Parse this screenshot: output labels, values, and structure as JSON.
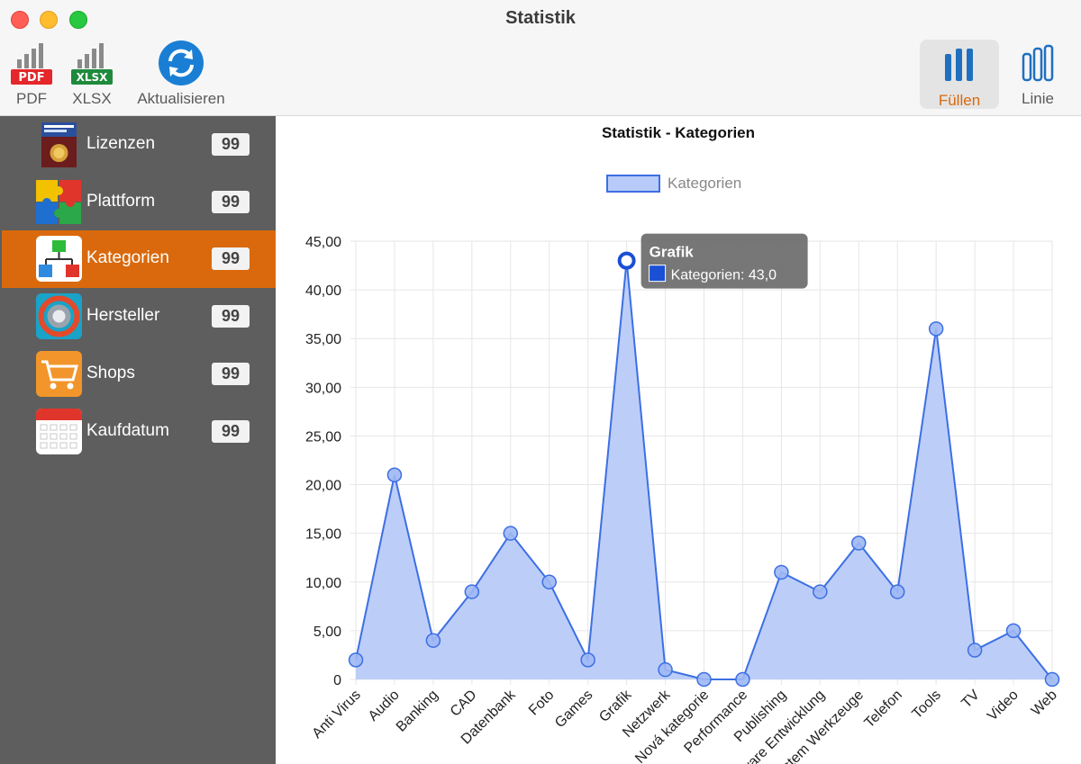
{
  "window": {
    "title": "Statistik"
  },
  "toolbar": {
    "pdf_label": "PDF",
    "xlsx_label": "XLSX",
    "refresh_label": "Aktualisieren",
    "fill_label": "Füllen",
    "line_label": "Linie",
    "pdf_badge": "PDF",
    "xlsx_badge": "XLSX"
  },
  "sidebar": {
    "items": [
      {
        "label": "Lizenzen",
        "badge": "99",
        "icon": "license-box-icon"
      },
      {
        "label": "Plattform",
        "badge": "99",
        "icon": "puzzle-icon"
      },
      {
        "label": "Kategorien",
        "badge": "99",
        "icon": "hierarchy-icon",
        "active": true
      },
      {
        "label": "Hersteller",
        "badge": "99",
        "icon": "gear-icon"
      },
      {
        "label": "Shops",
        "badge": "99",
        "icon": "cart-icon"
      },
      {
        "label": "Kaufdatum",
        "badge": "99",
        "icon": "calendar-icon"
      }
    ]
  },
  "colors": {
    "accent": "#d9690c",
    "series_fill": "#b8cbf8",
    "series_line": "#3d6fe3"
  },
  "chart_data": {
    "type": "area",
    "title": "Statistik - Kategorien",
    "legend": "top",
    "grid": true,
    "ylim": [
      0,
      45
    ],
    "yticks": [
      "0",
      "5,00",
      "10,00",
      "15,00",
      "20,00",
      "25,00",
      "30,00",
      "35,00",
      "40,00",
      "45,00"
    ],
    "categories": [
      "Anti Virus",
      "Audio",
      "Banking",
      "CAD",
      "Datenbank",
      "Foto",
      "Games",
      "Grafik",
      "Netzwerk",
      "Nová kategorie",
      "Performance",
      "Publishing",
      "Software Entwicklung",
      "System Werkzeuge",
      "Telefon",
      "Tools",
      "TV",
      "Video",
      "Web"
    ],
    "series": [
      {
        "name": "Kategorien",
        "values": [
          2,
          21,
          4,
          9,
          15,
          10,
          2,
          43,
          1,
          0,
          0,
          11,
          9,
          14,
          9,
          36,
          3,
          5,
          0
        ]
      }
    ],
    "tooltip": {
      "title": "Grafik",
      "text": "Kategorien: 43,0"
    }
  }
}
